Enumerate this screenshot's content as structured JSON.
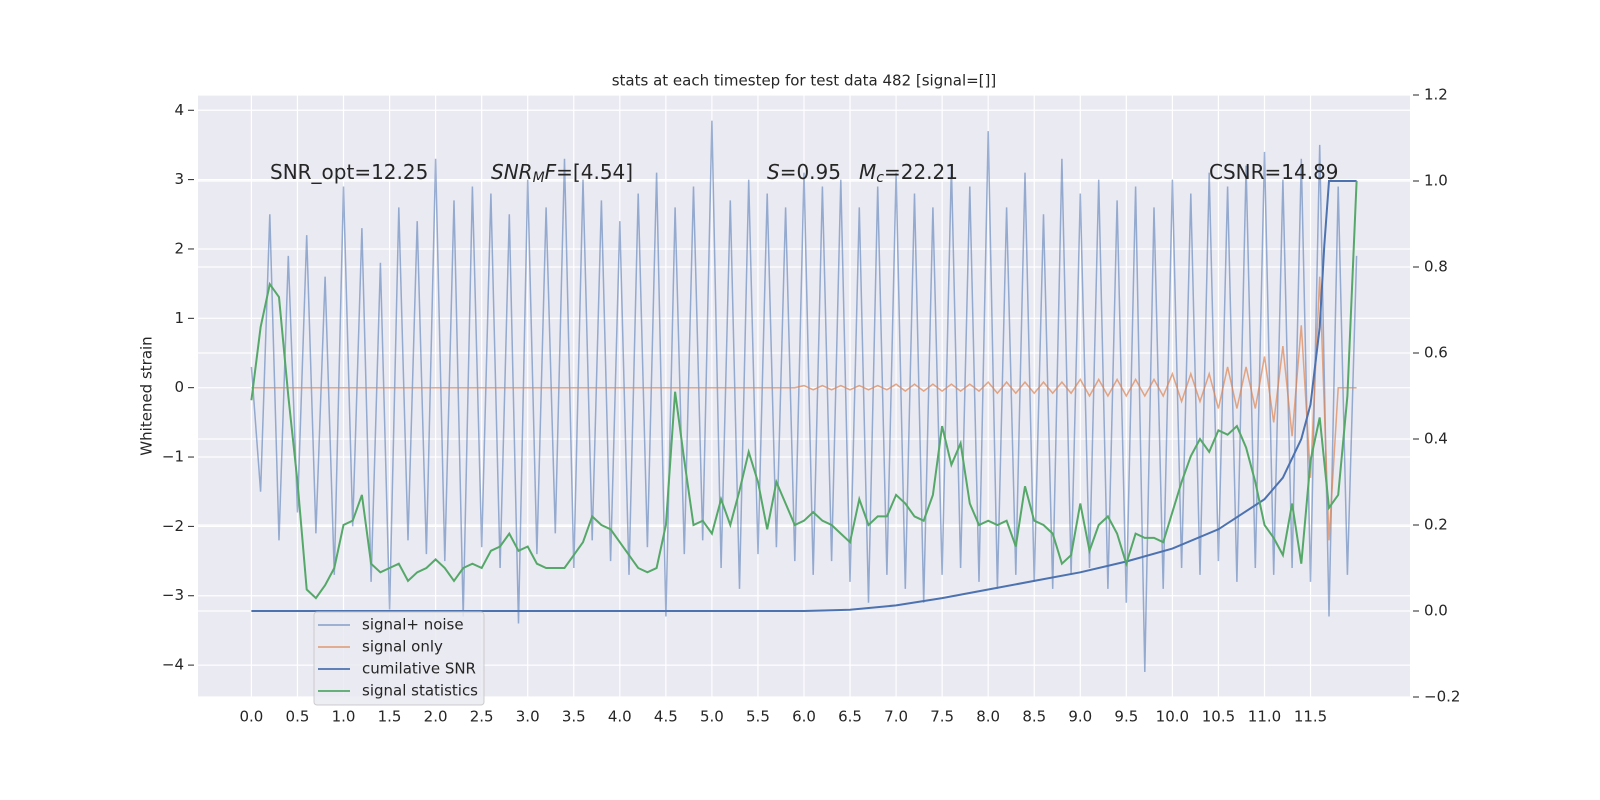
{
  "chart_data": {
    "type": "line",
    "title": "stats at each timestep for test data 482 [signal=[]]",
    "ylabel": "Whitened strain",
    "annotations": [
      {
        "parts": [
          {
            "text": "SNR_opt=12.25"
          }
        ]
      },
      {
        "parts": [
          {
            "text": "SNR",
            "italic": true
          },
          {
            "text": "M",
            "italic": true,
            "sub": true
          },
          {
            "text": "F",
            "italic": true
          },
          {
            "text": "=[4.54]"
          }
        ]
      },
      {
        "parts": [
          {
            "text": "S",
            "italic": true
          },
          {
            "text": "=0.95"
          }
        ]
      },
      {
        "parts": [
          {
            "text": "M",
            "italic": true
          },
          {
            "text": "c",
            "italic": true,
            "sub": true
          },
          {
            "text": "=22.21"
          }
        ]
      },
      {
        "parts": [
          {
            "text": "CSNR=14.89"
          }
        ]
      }
    ],
    "x": [
      0,
      0.1,
      0.2,
      0.3,
      0.4,
      0.5,
      0.6,
      0.7,
      0.8,
      0.9,
      1,
      1.1,
      1.2,
      1.3,
      1.4,
      1.5,
      1.6,
      1.7,
      1.8,
      1.9,
      2,
      2.1,
      2.2,
      2.3,
      2.4,
      2.5,
      2.6,
      2.7,
      2.8,
      2.9,
      3,
      3.1,
      3.2,
      3.3,
      3.4,
      3.5,
      3.6,
      3.7,
      3.8,
      3.9,
      4,
      4.1,
      4.2,
      4.3,
      4.4,
      4.5,
      4.6,
      4.7,
      4.8,
      4.9,
      5,
      5.1,
      5.2,
      5.3,
      5.4,
      5.5,
      5.6,
      5.7,
      5.8,
      5.9,
      6,
      6.1,
      6.2,
      6.3,
      6.4,
      6.5,
      6.6,
      6.7,
      6.8,
      6.9,
      7,
      7.1,
      7.2,
      7.3,
      7.4,
      7.5,
      7.6,
      7.7,
      7.8,
      7.9,
      8,
      8.1,
      8.2,
      8.3,
      8.4,
      8.5,
      8.6,
      8.7,
      8.8,
      8.9,
      9,
      9.1,
      9.2,
      9.3,
      9.4,
      9.5,
      9.6,
      9.7,
      9.8,
      9.9,
      10,
      10.1,
      10.2,
      10.3,
      10.4,
      10.5,
      10.6,
      10.7,
      10.8,
      10.9,
      11,
      11.1,
      11.2,
      11.3,
      11.4,
      11.5,
      11.6,
      11.7,
      11.8,
      11.9,
      12
    ],
    "series": [
      {
        "name": "signal+ noise",
        "color": "#4c72b0",
        "opacity": 0.55,
        "values": [
          0.3,
          -1.5,
          2.5,
          -2.2,
          1.9,
          -1.8,
          2.2,
          -2.1,
          1.6,
          -2.7,
          2.9,
          -2.0,
          2.3,
          -2.8,
          1.8,
          -3.2,
          2.6,
          -2.2,
          2.4,
          -2.4,
          3.3,
          -2.5,
          2.7,
          -3.3,
          2.9,
          -2.3,
          2.8,
          -2.6,
          2.5,
          -3.4,
          3.0,
          -2.4,
          2.6,
          -2.1,
          3.3,
          -2.6,
          3.0,
          -2.2,
          2.7,
          -2.5,
          2.4,
          -2.7,
          2.8,
          -2.3,
          3.1,
          -3.3,
          2.6,
          -2.4,
          2.9,
          -2.2,
          3.85,
          -2.6,
          2.7,
          -2.9,
          3.0,
          -2.4,
          2.8,
          -2.3,
          2.6,
          -2.5,
          3.1,
          -2.7,
          2.9,
          -2.5,
          3.0,
          -2.8,
          2.6,
          -3.1,
          2.9,
          -2.7,
          3.1,
          -2.9,
          2.8,
          -3.1,
          2.6,
          -2.7,
          3.2,
          -2.6,
          2.9,
          -2.8,
          3.7,
          -2.9,
          2.6,
          -2.7,
          3.1,
          -2.8,
          2.5,
          -2.9,
          3.3,
          -2.7,
          2.8,
          -2.6,
          3.0,
          -2.9,
          2.7,
          -3.1,
          2.9,
          -4.1,
          2.6,
          -2.9,
          3.0,
          -2.6,
          2.8,
          -2.7,
          3.1,
          -2.5,
          2.9,
          -2.8,
          3.2,
          -2.6,
          3.4,
          -2.7,
          3.0,
          -2.6,
          3.3,
          -2.8,
          3.5,
          -3.3,
          2.9,
          -2.7,
          1.9
        ]
      },
      {
        "name": "signal only",
        "color": "#dd8452",
        "opacity": 0.7,
        "values": [
          0,
          0,
          0,
          0,
          0,
          0,
          0,
          0,
          0,
          0,
          0,
          0,
          0,
          0,
          0,
          0,
          0,
          0,
          0,
          0,
          0,
          0,
          0,
          0,
          0,
          0,
          0,
          0,
          0,
          0,
          0,
          0,
          0,
          0,
          0,
          0,
          0,
          0,
          0,
          0,
          0,
          0,
          0,
          0,
          0,
          0,
          0,
          0,
          0,
          0,
          0,
          0,
          0,
          0,
          0,
          0,
          0,
          0,
          0,
          0,
          0.03,
          -0.03,
          0.03,
          -0.03,
          0.03,
          -0.03,
          0.03,
          -0.03,
          0.03,
          -0.03,
          0.05,
          -0.05,
          0.05,
          -0.05,
          0.05,
          -0.05,
          0.05,
          -0.05,
          0.05,
          -0.05,
          0.08,
          -0.08,
          0.08,
          -0.08,
          0.08,
          -0.08,
          0.08,
          -0.08,
          0.08,
          -0.08,
          0.12,
          -0.12,
          0.12,
          -0.12,
          0.12,
          -0.12,
          0.12,
          -0.12,
          0.12,
          -0.12,
          0.2,
          -0.2,
          0.2,
          -0.2,
          0.2,
          -0.3,
          0.3,
          -0.3,
          0.3,
          -0.3,
          0.45,
          -0.5,
          0.6,
          -0.7,
          0.9,
          -1.3,
          1.6,
          -2.2,
          0,
          0,
          0
        ]
      },
      {
        "name": "cumilative SNR",
        "color": "#4c72b0",
        "opacity": 1,
        "axis": "y2",
        "x": [
          0,
          6,
          6.5,
          7,
          7.5,
          8,
          8.5,
          9,
          9.5,
          10,
          10.5,
          11,
          11.2,
          11.4,
          11.5,
          11.6,
          11.65,
          11.7,
          12
        ],
        "values": [
          0,
          0,
          0.003,
          0.013,
          0.03,
          0.05,
          0.07,
          0.09,
          0.115,
          0.145,
          0.19,
          0.26,
          0.31,
          0.4,
          0.48,
          0.66,
          0.85,
          1,
          1
        ]
      },
      {
        "name": "signal statistics",
        "color": "#55a868",
        "opacity": 1,
        "axis": "y2",
        "values": [
          0.49,
          0.66,
          0.76,
          0.73,
          0.5,
          0.3,
          0.05,
          0.03,
          0.06,
          0.1,
          0.2,
          0.21,
          0.27,
          0.11,
          0.09,
          0.1,
          0.11,
          0.07,
          0.09,
          0.1,
          0.12,
          0.1,
          0.07,
          0.1,
          0.11,
          0.1,
          0.14,
          0.15,
          0.18,
          0.14,
          0.15,
          0.11,
          0.1,
          0.1,
          0.1,
          0.13,
          0.16,
          0.22,
          0.2,
          0.19,
          0.16,
          0.13,
          0.1,
          0.09,
          0.1,
          0.2,
          0.51,
          0.35,
          0.2,
          0.21,
          0.18,
          0.26,
          0.2,
          0.28,
          0.37,
          0.3,
          0.19,
          0.3,
          0.25,
          0.2,
          0.21,
          0.23,
          0.21,
          0.2,
          0.18,
          0.16,
          0.26,
          0.2,
          0.22,
          0.22,
          0.27,
          0.25,
          0.22,
          0.21,
          0.27,
          0.43,
          0.34,
          0.39,
          0.25,
          0.2,
          0.21,
          0.2,
          0.21,
          0.15,
          0.29,
          0.21,
          0.2,
          0.18,
          0.11,
          0.13,
          0.25,
          0.14,
          0.2,
          0.22,
          0.18,
          0.11,
          0.18,
          0.17,
          0.17,
          0.16,
          0.23,
          0.3,
          0.36,
          0.4,
          0.37,
          0.42,
          0.41,
          0.43,
          0.38,
          0.3,
          0.2,
          0.17,
          0.13,
          0.25,
          0.11,
          0.35,
          0.45,
          0.24,
          0.27,
          0.5,
          1.0
        ]
      }
    ],
    "xlim": [
      -0.58,
      12.58
    ],
    "ylim": [
      -4.46,
      4.22
    ],
    "y2lim": [
      -0.2,
      1.2
    ],
    "xticks": [
      {
        "value": 0,
        "label": "0.0"
      },
      0.5,
      {
        "value": 1,
        "label": "1.0"
      },
      1.5,
      {
        "value": 2,
        "label": "2.0"
      },
      2.5,
      {
        "value": 3,
        "label": "3.0"
      },
      3.5,
      {
        "value": 4,
        "label": "4.0"
      },
      4.5,
      {
        "value": 5,
        "label": "5.0"
      },
      5.5,
      {
        "value": 6,
        "label": "6.0"
      },
      6.5,
      {
        "value": 7,
        "label": "7.0"
      },
      7.5,
      {
        "value": 8,
        "label": "8.0"
      },
      8.5,
      {
        "value": 9,
        "label": "9.0"
      },
      9.5,
      {
        "value": 10,
        "label": "10.0"
      },
      10.5,
      {
        "value": 11,
        "label": "11.0"
      },
      11.5
    ],
    "yticks": [
      {
        "value": -4,
        "label": "−4"
      },
      {
        "value": -3,
        "label": "−3"
      },
      {
        "value": -2,
        "label": "−2"
      },
      {
        "value": -1,
        "label": "−1"
      },
      0,
      1,
      2,
      3,
      4
    ],
    "y2ticks": [
      {
        "value": -0.2,
        "label": "−0.2"
      },
      {
        "value": 0,
        "label": "0.0"
      },
      0.2,
      0.4,
      0.6,
      0.8,
      {
        "value": 1,
        "label": "1.0"
      },
      1.2
    ],
    "grid": true,
    "background": "#eaeaf2"
  }
}
